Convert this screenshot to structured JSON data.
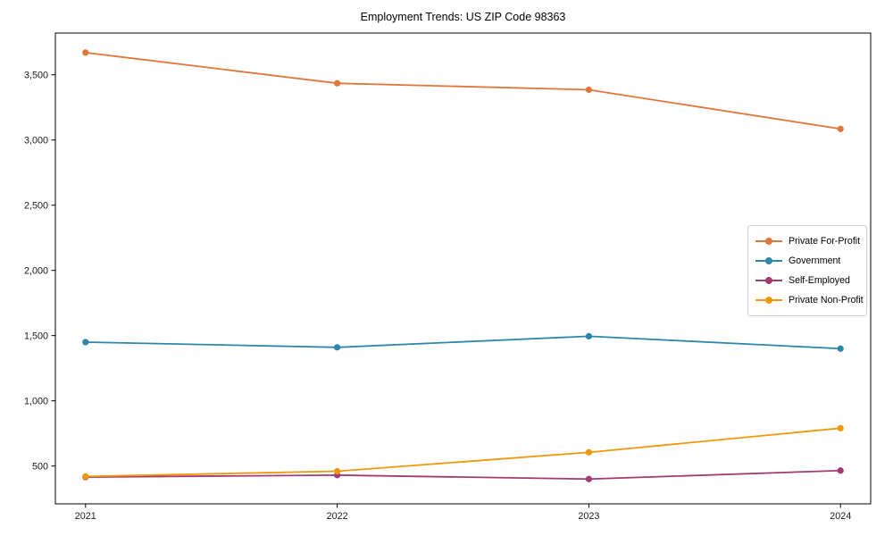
{
  "chart_data": {
    "type": "line",
    "title": "Employment Trends: US ZIP Code 98363",
    "x": [
      "2021",
      "2022",
      "2023",
      "2024"
    ],
    "series": [
      {
        "name": "Private For-Profit",
        "color": "#E0763B",
        "values": [
          3670,
          3435,
          3385,
          3085
        ]
      },
      {
        "name": "Government",
        "color": "#2E86AB",
        "values": [
          1450,
          1410,
          1495,
          1400
        ]
      },
      {
        "name": "Self-Employed",
        "color": "#A23B72",
        "values": [
          415,
          430,
          400,
          465
        ]
      },
      {
        "name": "Private Non-Profit",
        "color": "#F1970B",
        "values": [
          420,
          460,
          605,
          790
        ]
      }
    ],
    "xlabel": "",
    "ylabel": "",
    "ylim": [
      210,
      3820
    ],
    "yticks": [
      500,
      1000,
      1500,
      2000,
      2500,
      3000,
      3500
    ],
    "grid": false,
    "legend_position": "center right",
    "marker": "circle",
    "axis_color": "#000000"
  }
}
